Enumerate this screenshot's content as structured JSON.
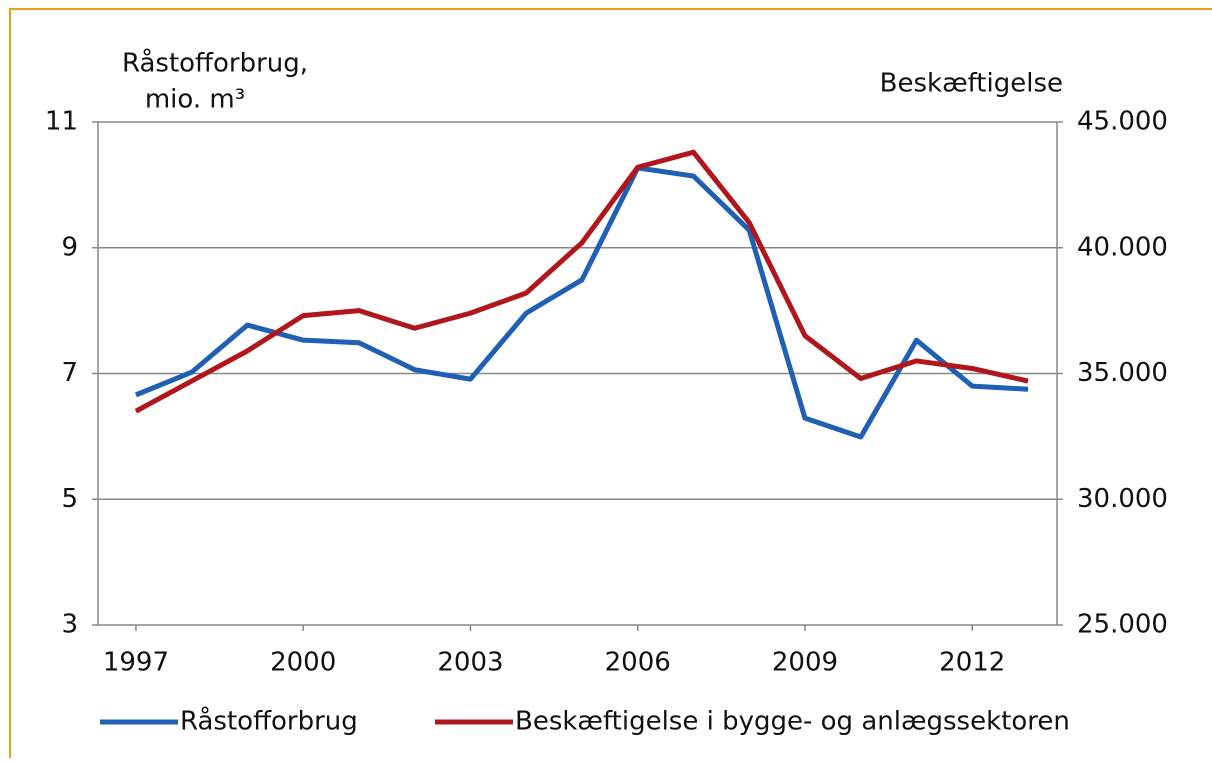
{
  "chart_data": {
    "type": "line",
    "y_label": [
      "Råstofforbrug,",
      "mio. m³"
    ],
    "y2_label": "Beskæftigelse",
    "x": [
      1997,
      1998,
      1999,
      2000,
      2001,
      2002,
      2003,
      2004,
      2005,
      2006,
      2007,
      2008,
      2009,
      2010,
      2011,
      2012,
      2013
    ],
    "xlim": [
      1996.32,
      2013.52
    ],
    "xticks": [
      1997,
      2000,
      2003,
      2006,
      2009,
      2012
    ],
    "ylim": [
      3,
      11
    ],
    "yticks": [
      3,
      5,
      7,
      9,
      11
    ],
    "y2lim": [
      25000,
      45000
    ],
    "y2ticks": [
      {
        "value": 25000,
        "label": "25.000"
      },
      {
        "value": 30000,
        "label": "30.000"
      },
      {
        "value": 35000,
        "label": "35.000"
      },
      {
        "value": 40000,
        "label": "40.000"
      },
      {
        "value": 45000,
        "label": "45.000"
      }
    ],
    "grid": true,
    "legend": "bottom",
    "series": [
      {
        "name": "Råstofforbrug",
        "color": "#1f5fb4",
        "values": [
          6.66,
          7.02,
          7.77,
          7.53,
          7.49,
          7.06,
          6.91,
          7.96,
          8.49,
          10.27,
          10.14,
          9.28,
          6.29,
          5.99,
          7.53,
          6.8,
          6.75
        ]
      },
      {
        "name": "Beskæftigelse i bygge- og anlægssektoren",
        "color": "#b0161c",
        "axis": "y2",
        "values": [
          33500,
          34700,
          35900,
          37300,
          37500,
          36800,
          37400,
          38200,
          40200,
          43200,
          43800,
          41000,
          36500,
          34800,
          35500,
          35200,
          34700
        ]
      }
    ]
  }
}
